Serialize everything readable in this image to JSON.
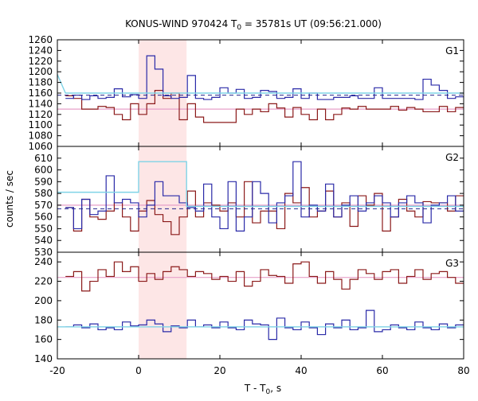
{
  "chart_data": {
    "type": "line",
    "title_main": "KONUS-WIND 970424 T",
    "title_sub": "0",
    "title_rest": " = 35781s UT (09:56:21.000)",
    "xlabel_main": "T - T",
    "xlabel_sub": "0",
    "xlabel_rest": ", s",
    "ylabel": "counts / sec",
    "xlim": [
      -20,
      80
    ],
    "x_ticks": [
      -20,
      0,
      20,
      40,
      60,
      80
    ],
    "shaded_region": [
      0,
      11.8
    ],
    "colors": {
      "blue": "#2a2aa8",
      "red": "#8b1a1a",
      "cyan": "#7fd3e6",
      "pink": "#e79fc8",
      "dashed": "#23238c",
      "shade": "#fde6e6"
    },
    "panels": [
      {
        "label": "G1",
        "ylim": [
          1060,
          1260
        ],
        "y_ticks": [
          1060,
          1080,
          1100,
          1120,
          1140,
          1160,
          1180,
          1200,
          1220,
          1240,
          1260
        ],
        "blue_step": {
          "x0": -18,
          "dx": 2,
          "values": [
            1150,
            1156,
            1148,
            1155,
            1150,
            1152,
            1168,
            1153,
            1157,
            1150,
            1230,
            1205,
            1155,
            1150,
            1152,
            1193,
            1150,
            1148,
            1152,
            1170,
            1160,
            1167,
            1150,
            1152,
            1165,
            1163,
            1150,
            1152,
            1168,
            1150,
            1160,
            1148,
            1148,
            1152,
            1152,
            1155,
            1150,
            1150,
            1170,
            1150,
            1150,
            1150,
            1150,
            1148,
            1186,
            1175,
            1165,
            1150,
            1153,
            1148,
            1152
          ]
        },
        "red_step": {
          "x0": -18,
          "dx": 2,
          "values": [
            1155,
            1150,
            1130,
            1130,
            1135,
            1133,
            1120,
            1110,
            1140,
            1120,
            1140,
            1165,
            1150,
            1160,
            1110,
            1140,
            1115,
            1105,
            1105,
            1105,
            1105,
            1130,
            1120,
            1130,
            1125,
            1140,
            1132,
            1115,
            1133,
            1120,
            1110,
            1130,
            1110,
            1120,
            1132,
            1130,
            1135,
            1130,
            1130,
            1130,
            1135,
            1128,
            1133,
            1130,
            1125,
            1125,
            1135,
            1125,
            1133,
            1125,
            1130
          ]
        },
        "cyan_step": [
          [
            -20,
            1195
          ],
          [
            -18,
            1160
          ],
          [
            80,
            1160
          ]
        ],
        "pink_level": 1130,
        "dashed_level": 1156
      },
      {
        "label": "G2",
        "ylim": [
          530,
          620
        ],
        "y_ticks": [
          530,
          540,
          550,
          560,
          570,
          580,
          590,
          600,
          610
        ],
        "blue_step": {
          "x0": -18,
          "dx": 2,
          "values": [
            568,
            550,
            575,
            562,
            565,
            595,
            572,
            575,
            572,
            560,
            570,
            590,
            578,
            578,
            572,
            568,
            565,
            588,
            560,
            550,
            590,
            548,
            560,
            590,
            580,
            555,
            572,
            578,
            607,
            560,
            570,
            565,
            588,
            560,
            570,
            578,
            565,
            572,
            578,
            572,
            560,
            572,
            578,
            572,
            555,
            570,
            572,
            578,
            565,
            545,
            602
          ]
        },
        "red_step": {
          "x0": -18,
          "dx": 2,
          "values": [
            568,
            548,
            575,
            560,
            558,
            565,
            572,
            560,
            548,
            565,
            574,
            562,
            556,
            545,
            560,
            582,
            560,
            572,
            570,
            565,
            572,
            560,
            590,
            555,
            565,
            565,
            550,
            580,
            572,
            585,
            560,
            565,
            582,
            560,
            572,
            552,
            578,
            570,
            580,
            548,
            560,
            575,
            565,
            560,
            573,
            572,
            572,
            565,
            578,
            582,
            590
          ]
        },
        "cyan_step": [
          [
            -20,
            581
          ],
          [
            0,
            581
          ],
          [
            0,
            607
          ],
          [
            11.8,
            607
          ],
          [
            11.8,
            569
          ],
          [
            80,
            569
          ]
        ],
        "pink_level": 570,
        "dashed_level": 567
      },
      {
        "label": "G3",
        "ylim": [
          140,
          250
        ],
        "y_ticks": [
          140,
          160,
          180,
          200,
          220,
          240
        ],
        "blue_step": {
          "x0": -18,
          "dx": 2,
          "values": [
            173,
            175,
            172,
            176,
            170,
            172,
            170,
            178,
            174,
            175,
            180,
            176,
            168,
            174,
            172,
            180,
            173,
            175,
            172,
            178,
            172,
            170,
            180,
            176,
            175,
            160,
            182,
            172,
            170,
            178,
            172,
            165,
            176,
            172,
            180,
            170,
            172,
            190,
            168,
            170,
            175,
            172,
            170,
            178,
            172,
            170,
            176,
            172,
            175,
            172,
            174
          ]
        },
        "red_step": {
          "x0": -18,
          "dx": 2,
          "values": [
            225,
            230,
            210,
            220,
            232,
            225,
            240,
            230,
            235,
            220,
            228,
            222,
            230,
            235,
            232,
            225,
            230,
            228,
            222,
            225,
            220,
            230,
            215,
            220,
            232,
            226,
            225,
            218,
            238,
            240,
            225,
            218,
            230,
            222,
            212,
            222,
            232,
            228,
            222,
            230,
            232,
            218,
            225,
            232,
            222,
            228,
            230,
            224,
            218,
            228,
            228
          ]
        },
        "cyan_step": [
          [
            -20,
            173
          ],
          [
            80,
            173
          ]
        ],
        "pink_level": 224,
        "dashed_level": null
      }
    ]
  }
}
